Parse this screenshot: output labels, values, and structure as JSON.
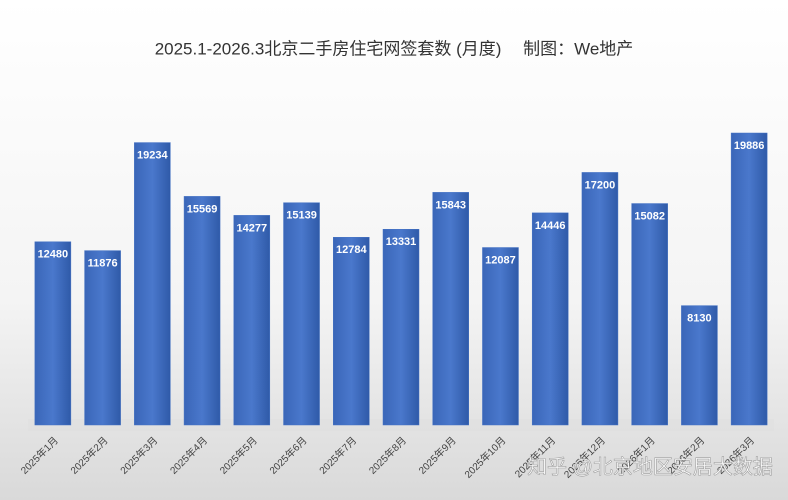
{
  "chart_data": {
    "type": "bar",
    "title": "2025.1-2026.3北京二手房住宅网签套数 (月度)　 制图：We地产",
    "categories": [
      "2025年1月",
      "2025年2月",
      "2025年3月",
      "2025年4月",
      "2025年5月",
      "2025年6月",
      "2025年7月",
      "2025年8月",
      "2025年9月",
      "2025年10月",
      "2025年11月",
      "2025年12月",
      "2026年1月",
      "2026年2月",
      "2026年3月"
    ],
    "values": [
      12480,
      11876,
      19234,
      15569,
      14277,
      15139,
      12784,
      13331,
      15843,
      12087,
      14446,
      17200,
      15082,
      8130,
      19886
    ],
    "color": "#4472c4",
    "watermark": "知乎 @北京地区安居大数据"
  }
}
